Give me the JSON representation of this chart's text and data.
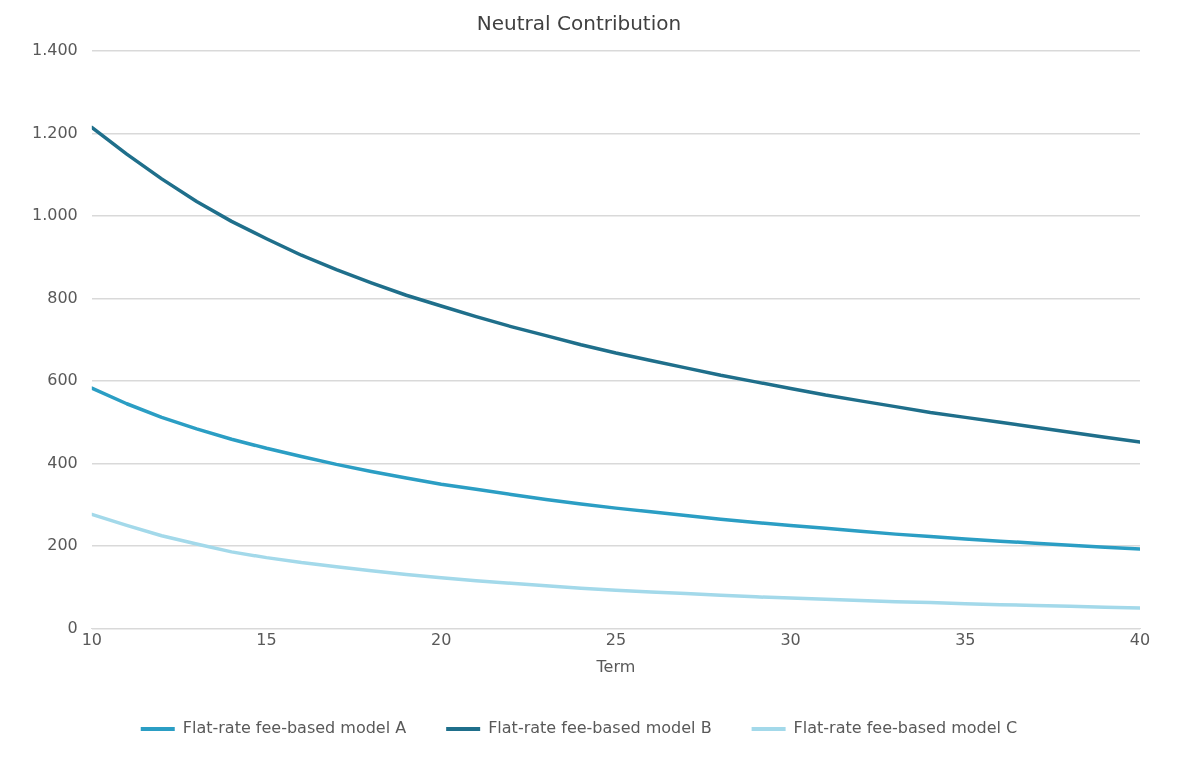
{
  "chart_data": {
    "type": "line",
    "title": "Neutral Contribution",
    "xlabel": "Term",
    "x": [
      10,
      11,
      12,
      13,
      14,
      15,
      16,
      17,
      18,
      19,
      20,
      21,
      22,
      23,
      24,
      25,
      26,
      27,
      28,
      29,
      30,
      31,
      32,
      33,
      34,
      35,
      36,
      37,
      38,
      39,
      40
    ],
    "series": [
      {
        "name": "Flat-rate fee-based model A",
        "color": "#2b9ec4",
        "values": [
          583,
          545,
          512,
          484,
          459,
          437,
          417,
          398,
          381,
          365,
          350,
          338,
          325,
          313,
          302,
          292,
          283,
          274,
          265,
          257,
          250,
          243,
          236,
          229,
          223,
          217,
          212,
          207,
          202,
          197,
          193
        ]
      },
      {
        "name": "Flat-rate fee-based model B",
        "color": "#1f6f8b",
        "values": [
          1215,
          1150,
          1090,
          1035,
          987,
          945,
          905,
          870,
          838,
          808,
          782,
          756,
          732,
          710,
          688,
          668,
          650,
          632,
          614,
          598,
          582,
          566,
          552,
          538,
          524,
          512,
          500,
          488,
          476,
          464,
          452
        ]
      },
      {
        "name": "Flat-rate fee-based model C",
        "color": "#a3d9ea",
        "values": [
          277,
          250,
          225,
          205,
          186,
          172,
          160,
          150,
          140,
          131,
          123,
          116,
          110,
          104,
          98,
          93,
          89,
          85,
          81,
          77,
          74,
          71,
          68,
          65,
          63,
          60,
          58,
          56,
          54,
          52,
          50
        ]
      }
    ],
    "xlim": [
      10,
      40
    ],
    "xticks": [
      10,
      15,
      20,
      25,
      30,
      35,
      40
    ],
    "ylim": [
      0,
      1400
    ],
    "yticks": [
      0,
      200,
      400,
      600,
      800,
      {
        "value": 1000,
        "label": "1.000"
      },
      {
        "value": 1200,
        "label": "1.200"
      },
      {
        "value": 1400,
        "label": "1.400"
      }
    ],
    "grid": "y",
    "legend": "bottom",
    "marker": "none",
    "line_style": "solid"
  }
}
